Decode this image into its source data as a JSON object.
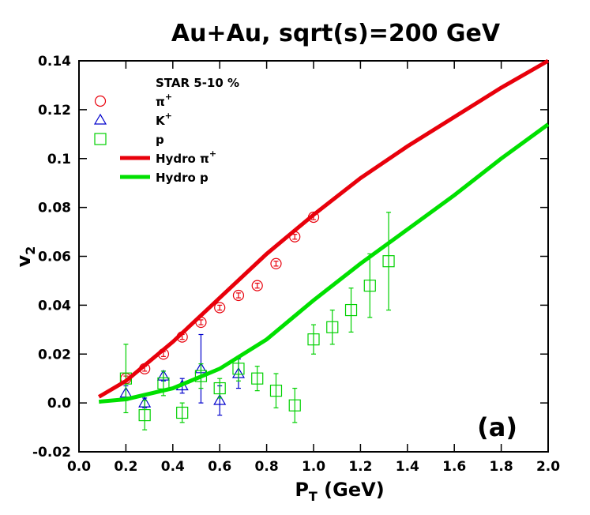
{
  "chart_data": {
    "type": "scatter",
    "title": "Au+Au, sqrt(s)=200 GeV",
    "x_label": "PT (GeV)",
    "y_label": "v2",
    "annotation": "(a)",
    "legend_title": "STAR 5-10 %",
    "xlim": [
      0,
      2
    ],
    "ylim": [
      -0.02,
      0.14
    ],
    "xticks": [
      {
        "value": 0,
        "label": "0.0"
      },
      0.2,
      0.4,
      0.6,
      0.8,
      {
        "value": 1,
        "label": "1.0"
      },
      1.2,
      1.4,
      1.6,
      1.8,
      {
        "value": 2,
        "label": "2.0"
      }
    ],
    "yticks": [
      -0.02,
      {
        "value": 0,
        "label": "0.0"
      },
      0.02,
      0.04,
      0.06,
      0.08,
      0.1,
      0.12,
      0.14
    ],
    "series": [
      {
        "name": "π+",
        "marker": "circle",
        "color": "#e8000b",
        "x": [
          0.2,
          0.28,
          0.36,
          0.44,
          0.52,
          0.6,
          0.68,
          0.76,
          0.84,
          0.92,
          1.0
        ],
        "values": [
          0.01,
          0.014,
          0.02,
          0.027,
          0.033,
          0.039,
          0.044,
          0.048,
          0.057,
          0.068,
          0.076
        ],
        "errors": [
          0.001,
          0.001,
          0.001,
          0.001,
          0.001,
          0.001,
          0.001,
          0.001,
          0.001,
          0.001,
          0.001
        ]
      },
      {
        "name": "K+",
        "marker": "triangle",
        "color": "#0000cc",
        "x": [
          0.2,
          0.28,
          0.36,
          0.44,
          0.52,
          0.6,
          0.68
        ],
        "values": [
          0.004,
          0.0,
          0.011,
          0.007,
          0.014,
          0.001,
          0.012
        ],
        "errors": [
          0.003,
          0.002,
          0.002,
          0.003,
          0.014,
          0.006,
          0.006
        ]
      },
      {
        "name": "p",
        "marker": "square",
        "color": "#00d000",
        "x": [
          0.2,
          0.28,
          0.36,
          0.44,
          0.52,
          0.6,
          0.68,
          0.76,
          0.84,
          0.92,
          1.0,
          1.08,
          1.16,
          1.24,
          1.32
        ],
        "values": [
          0.01,
          -0.005,
          0.008,
          -0.004,
          0.011,
          0.006,
          0.014,
          0.01,
          0.005,
          -0.001,
          0.026,
          0.031,
          0.038,
          0.048,
          0.058
        ],
        "errors": [
          0.014,
          0.006,
          0.005,
          0.004,
          0.005,
          0.004,
          0.005,
          0.005,
          0.007,
          0.007,
          0.006,
          0.007,
          0.009,
          0.013,
          0.02
        ]
      },
      {
        "name": "Hydro π+",
        "marker": "line",
        "color": "#e8000b",
        "x": [
          0.085,
          0.2,
          0.4,
          0.6,
          0.8,
          1.0,
          1.2,
          1.4,
          1.6,
          1.8,
          2.0
        ],
        "values": [
          0.0025,
          0.009,
          0.025,
          0.043,
          0.061,
          0.077,
          0.092,
          0.105,
          0.117,
          0.129,
          0.14
        ]
      },
      {
        "name": "Hydro p",
        "marker": "line",
        "color": "#00e000",
        "x": [
          0.085,
          0.2,
          0.4,
          0.6,
          0.8,
          1.0,
          1.2,
          1.4,
          1.6,
          1.8,
          2.0
        ],
        "values": [
          0.0005,
          0.0015,
          0.006,
          0.014,
          0.026,
          0.042,
          0.057,
          0.071,
          0.085,
          0.1,
          0.114
        ]
      }
    ]
  }
}
